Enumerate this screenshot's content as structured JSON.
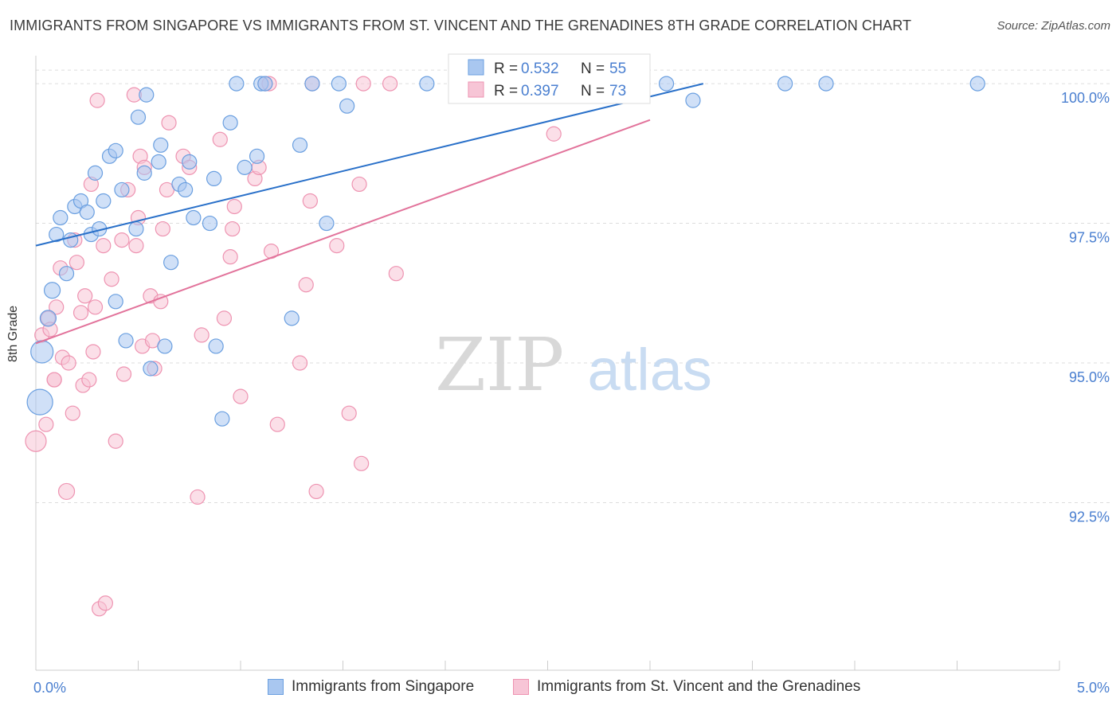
{
  "title": "IMMIGRANTS FROM SINGAPORE VS IMMIGRANTS FROM ST. VINCENT AND THE GRENADINES 8TH GRADE CORRELATION CHART",
  "source": "Source: ZipAtlas.com",
  "watermark": {
    "zip": "ZIP",
    "atlas": "atlas"
  },
  "colors": {
    "blue_fill": "#a9c7f0",
    "blue_stroke": "#6a9fe0",
    "blue_line": "#2970c9",
    "pink_fill": "#f7c5d6",
    "pink_stroke": "#ee93b1",
    "pink_line": "#e2739b",
    "axis_text": "#4a7fd0",
    "grid": "#dddddd"
  },
  "legend": {
    "rows": [
      {
        "r_label": "R =",
        "r_value": "0.532",
        "n_label": "N =",
        "n_value": "55"
      },
      {
        "r_label": "R =",
        "r_value": "0.397",
        "n_label": "N =",
        "n_value": "73"
      }
    ]
  },
  "chart_data": {
    "type": "scatter",
    "title": "IMMIGRANTS FROM SINGAPORE VS IMMIGRANTS FROM ST. VINCENT AND THE GRENADINES 8TH GRADE CORRELATION CHART",
    "xlabel": "",
    "ylabel": "8th Grade",
    "xlim": [
      0,
      5
    ],
    "ylim": [
      89.5,
      100.5
    ],
    "x_tick_labels": [
      "0.0%",
      "5.0%"
    ],
    "y_ticks": [
      92.5,
      95.0,
      97.5,
      100.0
    ],
    "y_tick_labels": [
      "92.5%",
      "95.0%",
      "97.5%",
      "100.0%"
    ],
    "legend_position": "top-center",
    "series": [
      {
        "name": "Immigrants from Singapore",
        "color": "blue",
        "r": 0.532,
        "n": 55,
        "trend": {
          "x0": 0.0,
          "y0": 97.1,
          "x1": 3.26,
          "y1": 100.0
        },
        "points": [
          {
            "x": 0.02,
            "y": 94.3,
            "s": 16
          },
          {
            "x": 0.03,
            "y": 95.2,
            "s": 14
          },
          {
            "x": 0.06,
            "y": 95.8,
            "s": 10
          },
          {
            "x": 0.08,
            "y": 96.3,
            "s": 10
          },
          {
            "x": 0.1,
            "y": 97.3,
            "s": 9
          },
          {
            "x": 0.12,
            "y": 97.6,
            "s": 9
          },
          {
            "x": 0.15,
            "y": 96.6,
            "s": 9
          },
          {
            "x": 0.17,
            "y": 97.2,
            "s": 9
          },
          {
            "x": 0.19,
            "y": 97.8,
            "s": 9
          },
          {
            "x": 0.22,
            "y": 97.9,
            "s": 9
          },
          {
            "x": 0.25,
            "y": 97.7,
            "s": 9
          },
          {
            "x": 0.27,
            "y": 97.3,
            "s": 9
          },
          {
            "x": 0.29,
            "y": 98.4,
            "s": 9
          },
          {
            "x": 0.31,
            "y": 97.4,
            "s": 9
          },
          {
            "x": 0.33,
            "y": 97.9,
            "s": 9
          },
          {
            "x": 0.36,
            "y": 98.7,
            "s": 9
          },
          {
            "x": 0.39,
            "y": 98.8,
            "s": 9
          },
          {
            "x": 0.39,
            "y": 96.1,
            "s": 9
          },
          {
            "x": 0.42,
            "y": 98.1,
            "s": 9
          },
          {
            "x": 0.44,
            "y": 95.4,
            "s": 9
          },
          {
            "x": 0.49,
            "y": 97.4,
            "s": 9
          },
          {
            "x": 0.5,
            "y": 99.4,
            "s": 9
          },
          {
            "x": 0.53,
            "y": 98.4,
            "s": 9
          },
          {
            "x": 0.54,
            "y": 99.8,
            "s": 9
          },
          {
            "x": 0.56,
            "y": 94.9,
            "s": 9
          },
          {
            "x": 0.6,
            "y": 98.6,
            "s": 9
          },
          {
            "x": 0.61,
            "y": 98.9,
            "s": 9
          },
          {
            "x": 0.63,
            "y": 95.3,
            "s": 9
          },
          {
            "x": 0.66,
            "y": 96.8,
            "s": 9
          },
          {
            "x": 0.7,
            "y": 98.2,
            "s": 9
          },
          {
            "x": 0.73,
            "y": 98.1,
            "s": 9
          },
          {
            "x": 0.75,
            "y": 98.6,
            "s": 9
          },
          {
            "x": 0.77,
            "y": 97.6,
            "s": 9
          },
          {
            "x": 0.85,
            "y": 97.5,
            "s": 9
          },
          {
            "x": 0.87,
            "y": 98.3,
            "s": 9
          },
          {
            "x": 0.88,
            "y": 95.3,
            "s": 9
          },
          {
            "x": 0.91,
            "y": 94.0,
            "s": 9
          },
          {
            "x": 0.95,
            "y": 99.3,
            "s": 9
          },
          {
            "x": 0.98,
            "y": 100.0,
            "s": 9
          },
          {
            "x": 1.02,
            "y": 98.5,
            "s": 9
          },
          {
            "x": 1.08,
            "y": 98.7,
            "s": 9
          },
          {
            "x": 1.1,
            "y": 100.0,
            "s": 9
          },
          {
            "x": 1.12,
            "y": 100.0,
            "s": 9
          },
          {
            "x": 1.25,
            "y": 95.8,
            "s": 9
          },
          {
            "x": 1.29,
            "y": 98.9,
            "s": 9
          },
          {
            "x": 1.35,
            "y": 100.0,
            "s": 9
          },
          {
            "x": 1.42,
            "y": 97.5,
            "s": 9
          },
          {
            "x": 1.48,
            "y": 100.0,
            "s": 9
          },
          {
            "x": 1.52,
            "y": 99.6,
            "s": 9
          },
          {
            "x": 1.91,
            "y": 100.0,
            "s": 9
          },
          {
            "x": 3.08,
            "y": 100.0,
            "s": 9
          },
          {
            "x": 3.21,
            "y": 99.7,
            "s": 9
          },
          {
            "x": 3.66,
            "y": 100.0,
            "s": 9
          },
          {
            "x": 3.86,
            "y": 100.0,
            "s": 9
          },
          {
            "x": 4.6,
            "y": 100.0,
            "s": 9
          }
        ]
      },
      {
        "name": "Immigrants from St. Vincent and the Grenadines",
        "color": "pink",
        "r": 0.397,
        "n": 73,
        "trend": {
          "x0": 0.0,
          "y0": 95.35,
          "x1": 3.0,
          "y1": 99.35
        },
        "points": [
          {
            "x": 0.0,
            "y": 93.6,
            "s": 13
          },
          {
            "x": 0.03,
            "y": 95.5,
            "s": 9
          },
          {
            "x": 0.05,
            "y": 93.9,
            "s": 9
          },
          {
            "x": 0.06,
            "y": 95.8,
            "s": 9
          },
          {
            "x": 0.07,
            "y": 95.6,
            "s": 9
          },
          {
            "x": 0.09,
            "y": 94.7,
            "s": 9
          },
          {
            "x": 0.1,
            "y": 96.0,
            "s": 9
          },
          {
            "x": 0.12,
            "y": 96.7,
            "s": 9
          },
          {
            "x": 0.13,
            "y": 95.1,
            "s": 9
          },
          {
            "x": 0.15,
            "y": 92.7,
            "s": 10
          },
          {
            "x": 0.16,
            "y": 95.0,
            "s": 9
          },
          {
            "x": 0.18,
            "y": 94.1,
            "s": 9
          },
          {
            "x": 0.19,
            "y": 97.2,
            "s": 9
          },
          {
            "x": 0.2,
            "y": 96.8,
            "s": 9
          },
          {
            "x": 0.22,
            "y": 95.9,
            "s": 9
          },
          {
            "x": 0.23,
            "y": 94.6,
            "s": 9
          },
          {
            "x": 0.24,
            "y": 96.2,
            "s": 9
          },
          {
            "x": 0.26,
            "y": 94.7,
            "s": 9
          },
          {
            "x": 0.27,
            "y": 98.2,
            "s": 9
          },
          {
            "x": 0.28,
            "y": 95.2,
            "s": 9
          },
          {
            "x": 0.29,
            "y": 96.0,
            "s": 9
          },
          {
            "x": 0.3,
            "y": 99.7,
            "s": 9
          },
          {
            "x": 0.31,
            "y": 90.6,
            "s": 9
          },
          {
            "x": 0.33,
            "y": 97.1,
            "s": 9
          },
          {
            "x": 0.34,
            "y": 90.7,
            "s": 9
          },
          {
            "x": 0.37,
            "y": 96.5,
            "s": 9
          },
          {
            "x": 0.39,
            "y": 93.6,
            "s": 9
          },
          {
            "x": 0.42,
            "y": 97.2,
            "s": 9
          },
          {
            "x": 0.43,
            "y": 94.8,
            "s": 9
          },
          {
            "x": 0.45,
            "y": 98.1,
            "s": 9
          },
          {
            "x": 0.48,
            "y": 99.8,
            "s": 9
          },
          {
            "x": 0.49,
            "y": 97.1,
            "s": 9
          },
          {
            "x": 0.5,
            "y": 97.6,
            "s": 9
          },
          {
            "x": 0.51,
            "y": 98.7,
            "s": 9
          },
          {
            "x": 0.52,
            "y": 95.3,
            "s": 9
          },
          {
            "x": 0.53,
            "y": 98.5,
            "s": 9
          },
          {
            "x": 0.56,
            "y": 96.2,
            "s": 9
          },
          {
            "x": 0.57,
            "y": 95.4,
            "s": 9
          },
          {
            "x": 0.58,
            "y": 94.9,
            "s": 9
          },
          {
            "x": 0.61,
            "y": 96.1,
            "s": 9
          },
          {
            "x": 0.62,
            "y": 97.4,
            "s": 9
          },
          {
            "x": 0.64,
            "y": 98.1,
            "s": 9
          },
          {
            "x": 0.65,
            "y": 99.3,
            "s": 9
          },
          {
            "x": 0.72,
            "y": 98.7,
            "s": 9
          },
          {
            "x": 0.75,
            "y": 98.5,
            "s": 9
          },
          {
            "x": 0.79,
            "y": 92.6,
            "s": 9
          },
          {
            "x": 0.81,
            "y": 95.5,
            "s": 9
          },
          {
            "x": 0.9,
            "y": 99.0,
            "s": 9
          },
          {
            "x": 0.92,
            "y": 95.8,
            "s": 9
          },
          {
            "x": 0.95,
            "y": 96.9,
            "s": 9
          },
          {
            "x": 0.96,
            "y": 97.4,
            "s": 9
          },
          {
            "x": 0.97,
            "y": 97.8,
            "s": 9
          },
          {
            "x": 1.0,
            "y": 94.4,
            "s": 9
          },
          {
            "x": 1.07,
            "y": 98.3,
            "s": 9
          },
          {
            "x": 1.09,
            "y": 98.5,
            "s": 9
          },
          {
            "x": 1.12,
            "y": 100.0,
            "s": 9
          },
          {
            "x": 1.14,
            "y": 100.0,
            "s": 9
          },
          {
            "x": 1.15,
            "y": 97.0,
            "s": 9
          },
          {
            "x": 1.18,
            "y": 93.9,
            "s": 9
          },
          {
            "x": 1.29,
            "y": 95.0,
            "s": 9
          },
          {
            "x": 1.32,
            "y": 96.4,
            "s": 9
          },
          {
            "x": 1.34,
            "y": 97.9,
            "s": 9
          },
          {
            "x": 1.35,
            "y": 100.0,
            "s": 9
          },
          {
            "x": 1.37,
            "y": 92.7,
            "s": 9
          },
          {
            "x": 1.47,
            "y": 97.1,
            "s": 9
          },
          {
            "x": 1.53,
            "y": 94.1,
            "s": 9
          },
          {
            "x": 1.58,
            "y": 98.2,
            "s": 9
          },
          {
            "x": 1.59,
            "y": 93.2,
            "s": 9
          },
          {
            "x": 1.6,
            "y": 100.0,
            "s": 9
          },
          {
            "x": 1.73,
            "y": 100.0,
            "s": 9
          },
          {
            "x": 1.76,
            "y": 96.6,
            "s": 9
          },
          {
            "x": 2.53,
            "y": 99.1,
            "s": 9
          },
          {
            "x": 0.09,
            "y": 94.7,
            "s": 9
          }
        ]
      }
    ]
  }
}
